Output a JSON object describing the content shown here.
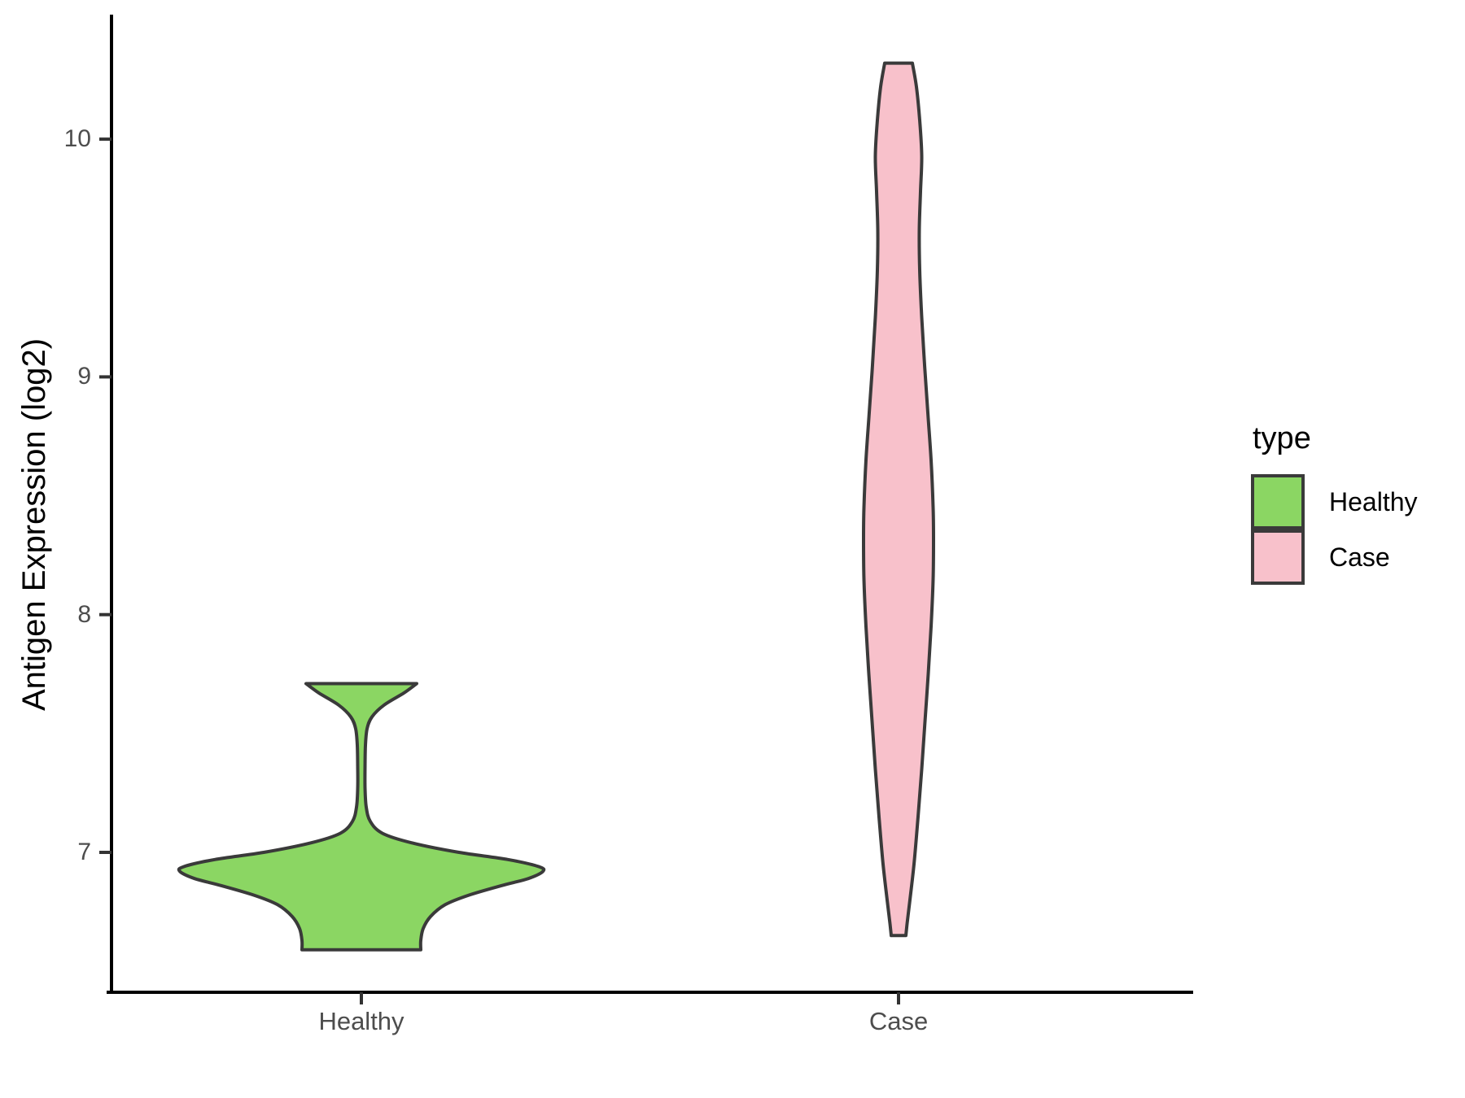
{
  "chart_data": {
    "type": "violin",
    "title": "",
    "xlabel": "",
    "ylabel": "Antigen Expression (log2)",
    "categories": [
      "Healthy",
      "Case"
    ],
    "y_axis": {
      "ticks": [
        {
          "label": "10",
          "value": 10
        },
        {
          "label": "9",
          "value": 9
        },
        {
          "label": "8",
          "value": 8
        },
        {
          "label": "7",
          "value": 7
        }
      ],
      "range_shown": [
        6.4,
        10.5
      ],
      "grid": false
    },
    "profile_format": "[expression_value, half_width_px]",
    "series": [
      {
        "name": "Healthy",
        "fill": "#8BD663",
        "outline": "#3A3A3A",
        "value_range": [
          6.59,
          7.71
        ],
        "peak_value": 6.92,
        "secondary_mode": 7.7,
        "profile": [
          [
            7.71,
            68
          ],
          [
            7.67,
            52
          ],
          [
            7.62,
            28
          ],
          [
            7.57,
            13
          ],
          [
            7.52,
            7
          ],
          [
            7.45,
            5
          ],
          [
            7.36,
            4.5
          ],
          [
            7.27,
            4.5
          ],
          [
            7.19,
            6
          ],
          [
            7.13,
            11
          ],
          [
            7.08,
            26
          ],
          [
            7.04,
            62
          ],
          [
            7.0,
            120
          ],
          [
            6.97,
            180
          ],
          [
            6.94,
            218
          ],
          [
            6.92,
            223
          ],
          [
            6.89,
            205
          ],
          [
            6.86,
            172
          ],
          [
            6.82,
            132
          ],
          [
            6.78,
            103
          ],
          [
            6.73,
            85
          ],
          [
            6.68,
            76
          ],
          [
            6.63,
            73
          ],
          [
            6.59,
            73
          ]
        ]
      },
      {
        "name": "Case",
        "fill": "#F8C1CB",
        "outline": "#3A3A3A",
        "value_range": [
          6.65,
          10.32
        ],
        "peak_value": 8.32,
        "profile": [
          [
            10.32,
            17
          ],
          [
            10.22,
            22
          ],
          [
            10.08,
            26
          ],
          [
            9.93,
            28.5
          ],
          [
            9.78,
            27
          ],
          [
            9.62,
            25.5
          ],
          [
            9.45,
            26
          ],
          [
            9.25,
            28.5
          ],
          [
            9.05,
            32
          ],
          [
            8.85,
            36
          ],
          [
            8.65,
            40
          ],
          [
            8.45,
            42.5
          ],
          [
            8.32,
            43
          ],
          [
            8.15,
            42.5
          ],
          [
            7.95,
            40
          ],
          [
            7.75,
            36.5
          ],
          [
            7.55,
            32.5
          ],
          [
            7.35,
            28.5
          ],
          [
            7.15,
            24
          ],
          [
            6.95,
            19
          ],
          [
            6.8,
            14
          ],
          [
            6.7,
            10.5
          ],
          [
            6.65,
            9
          ]
        ]
      }
    ],
    "legend": {
      "title": "type",
      "position": "right",
      "entries": [
        {
          "label": "Healthy",
          "color": "#8BD663"
        },
        {
          "label": "Case",
          "color": "#F8C1CB"
        }
      ]
    }
  }
}
